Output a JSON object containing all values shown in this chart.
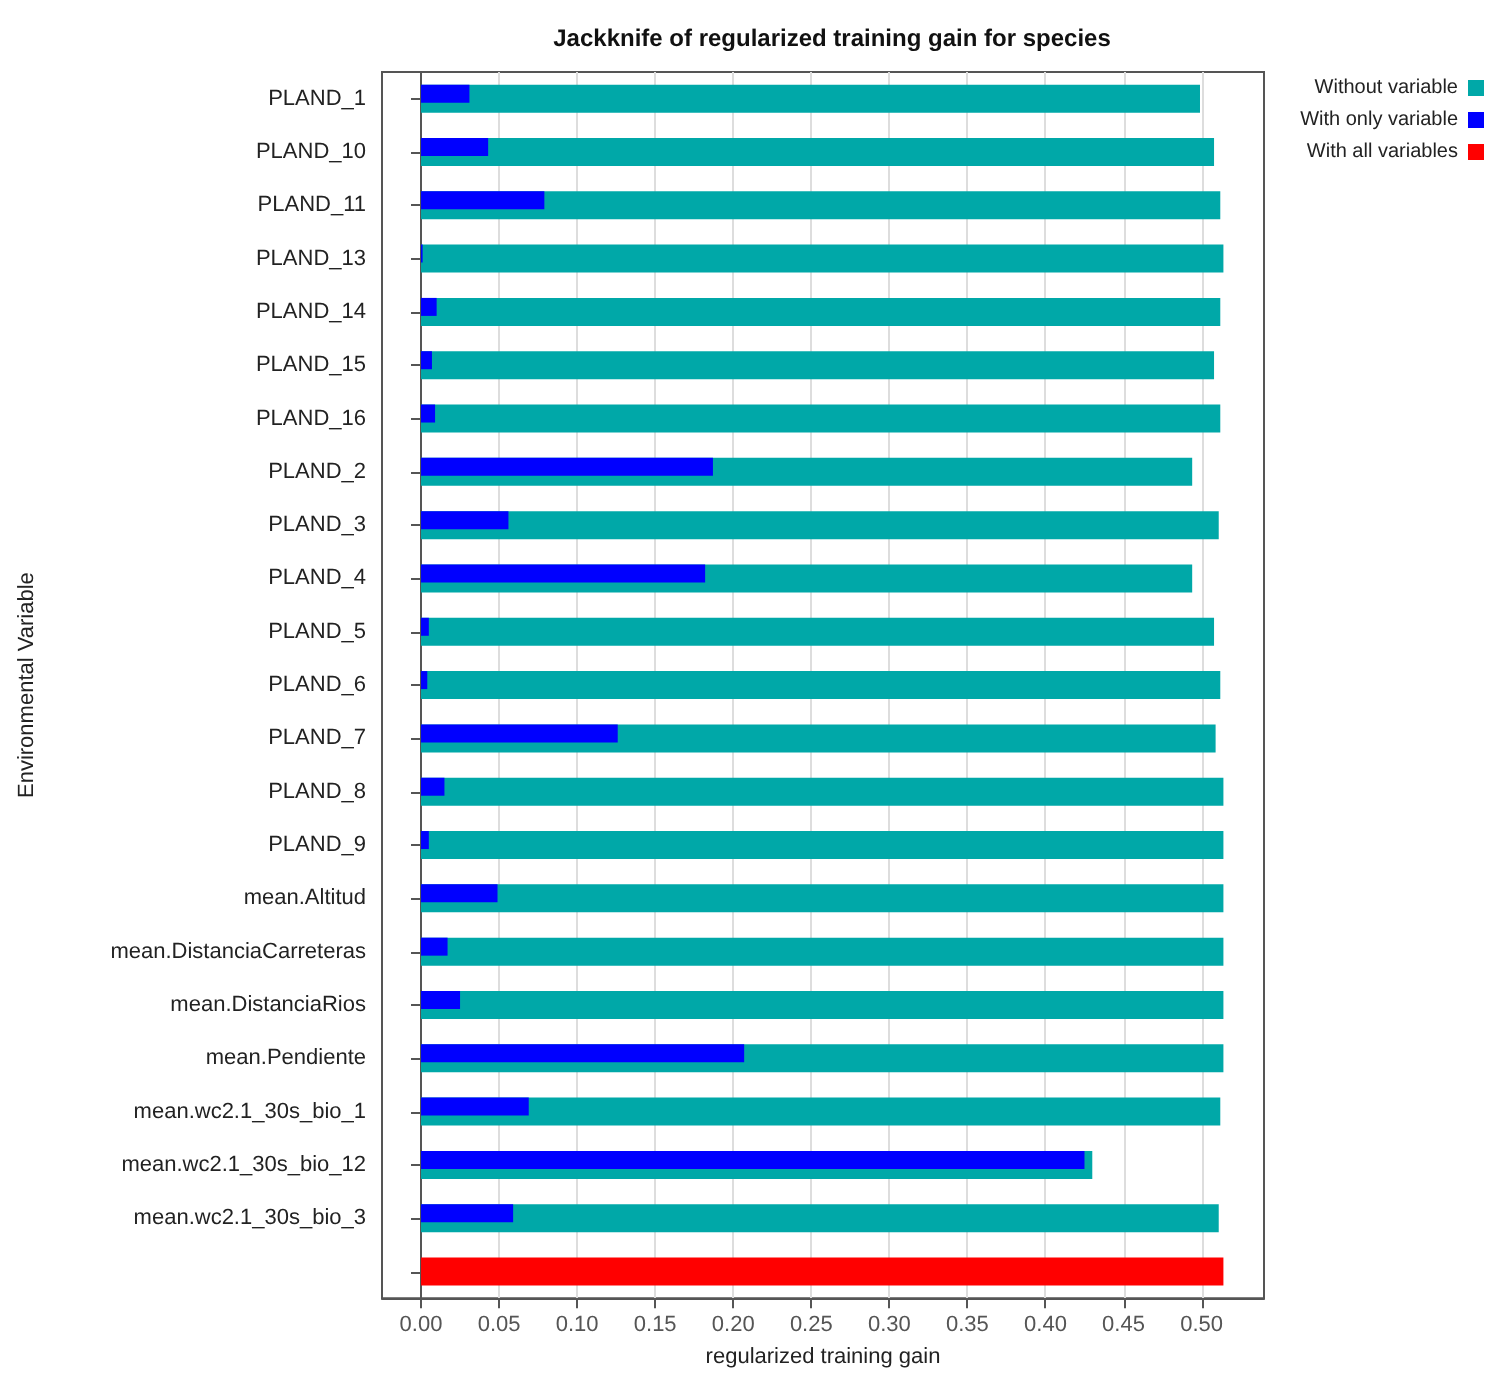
{
  "chart_data": {
    "type": "bar",
    "orientation": "horizontal",
    "title": "Jackknife of regularized training gain for species",
    "xlabel": "regularized training gain",
    "ylabel": "Environmental Variable",
    "categories": [
      "PLAND_1",
      "PLAND_10",
      "PLAND_11",
      "PLAND_13",
      "PLAND_14",
      "PLAND_15",
      "PLAND_16",
      "PLAND_2",
      "PLAND_3",
      "PLAND_4",
      "PLAND_5",
      "PLAND_6",
      "PLAND_7",
      "PLAND_8",
      "PLAND_9",
      "mean.Altitud",
      "mean.DistanciaCarreteras",
      "mean.DistanciaRios",
      "mean.Pendiente",
      "mean.wc2.1_30s_bio_1",
      "mean.wc2.1_30s_bio_12",
      "mean.wc2.1_30s_bio_3",
      null
    ],
    "series": [
      {
        "name": "Without variable",
        "color": "#00a8a8",
        "values": [
          0.499,
          0.508,
          0.512,
          0.514,
          0.512,
          0.508,
          0.512,
          0.494,
          0.511,
          0.494,
          0.508,
          0.512,
          0.509,
          0.514,
          0.514,
          0.514,
          0.514,
          0.514,
          0.514,
          0.512,
          0.43,
          0.511,
          null
        ]
      },
      {
        "name": "With only variable",
        "color": "#0000ff",
        "values": [
          0.031,
          0.043,
          0.079,
          0.001,
          0.01,
          0.007,
          0.009,
          0.187,
          0.056,
          0.182,
          0.005,
          0.004,
          0.126,
          0.015,
          0.005,
          0.049,
          0.017,
          0.025,
          0.207,
          0.069,
          0.425,
          0.059,
          null
        ]
      },
      {
        "name": "With all variables",
        "color": "#ff0000",
        "values": [
          null,
          null,
          null,
          null,
          null,
          null,
          null,
          null,
          null,
          null,
          null,
          null,
          null,
          null,
          null,
          null,
          null,
          null,
          null,
          null,
          null,
          null,
          0.514
        ]
      }
    ],
    "xlim": [
      -0.025,
      0.54
    ],
    "xticks": [
      {
        "value": 0,
        "label": "0.00"
      },
      {
        "value": 0.05,
        "label": "0.05"
      },
      {
        "value": 0.1,
        "label": "0.10"
      },
      {
        "value": 0.15,
        "label": "0.15"
      },
      {
        "value": 0.2,
        "label": "0.20"
      },
      {
        "value": 0.25,
        "label": "0.25"
      },
      {
        "value": 0.3,
        "label": "0.30"
      },
      {
        "value": 0.35,
        "label": "0.35"
      },
      {
        "value": 0.4,
        "label": "0.40"
      },
      {
        "value": 0.45,
        "label": "0.45"
      },
      {
        "value": 0.5,
        "label": "0.50"
      }
    ],
    "grid": "x",
    "legend": "top right"
  }
}
